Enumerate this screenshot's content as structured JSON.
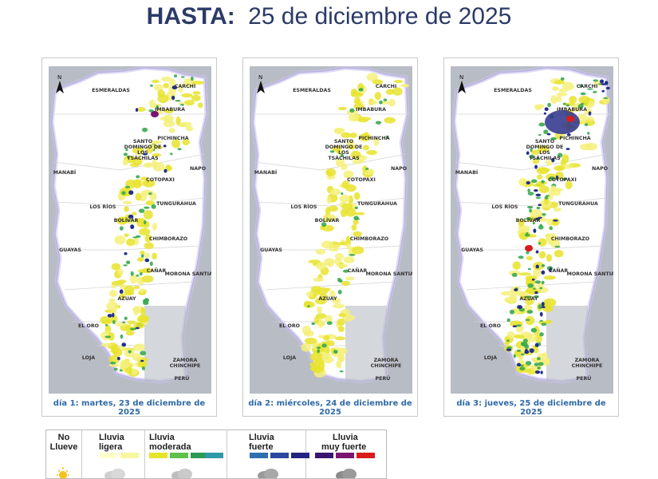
{
  "header": {
    "label": "HASTA:",
    "date": "25 de diciembre de 2025"
  },
  "maps": [
    {
      "caption": "día 1: martes, 23 de diciembre de 2025",
      "intensity": "mixed"
    },
    {
      "caption": "día 2: miércoles, 24 de diciembre de 2025",
      "intensity": "light"
    },
    {
      "caption": "día 3: jueves, 25 de diciembre de 2025",
      "intensity": "heavy"
    }
  ],
  "north_label": "N",
  "provinces": [
    "ESMERALDAS",
    "CARCHI",
    "IMBABURA",
    "SANTO",
    "DOMINGO DE",
    "LOS",
    "TSÁCHILAS",
    "PICHINCHA",
    "MANABÍ",
    "NAPO",
    "COTOPAXI",
    "LOS RÍOS",
    "TUNGURAHUA",
    "BOLÍVAR",
    "GUAYAS",
    "CHIMBORAZO",
    "CAÑAR",
    "MORONA SANTIAGO",
    "AZUAY",
    "EL ORO",
    "LOJA",
    "ZAMORA",
    "CHINCHIPE",
    "PERÚ"
  ],
  "legend": {
    "no_rain": [
      "No",
      "Llueve"
    ],
    "light": [
      "Lluvia",
      "ligera"
    ],
    "moderate": [
      "Lluvia",
      "moderada"
    ],
    "heavy": [
      "Lluvia",
      "fuerte"
    ],
    "very_heavy": [
      "Lluvia",
      "muy fuerte"
    ],
    "colors": [
      "#ffffcc",
      "#f7f7a0",
      "#e4e42a",
      "#5ec24a",
      "#2a9a55",
      "#2e9aa8",
      "#2d6fb0",
      "#2c47a0",
      "#222580",
      "#3a1470",
      "#7a1470",
      "#d81b1b"
    ]
  }
}
